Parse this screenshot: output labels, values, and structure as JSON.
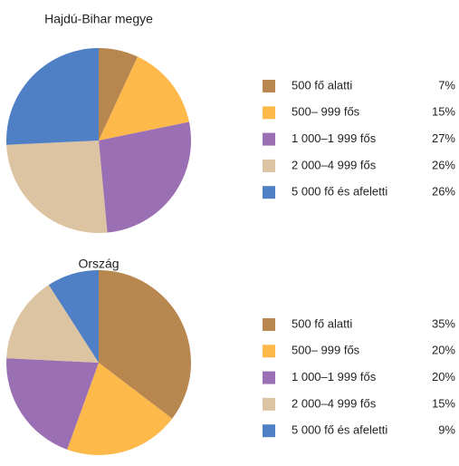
{
  "chart_data": [
    {
      "type": "pie",
      "title": "Hajdú-Bihar megye",
      "categories": [
        "500 fő alatti",
        "500–  999 fős",
        "1 000–1 999 fős",
        "2 000–4 999 fős",
        "5 000 fő és afeletti"
      ],
      "values": [
        7,
        15,
        27,
        26,
        26
      ],
      "value_labels": [
        "7%",
        "15%",
        "27%",
        "26%",
        "26%"
      ],
      "colors": [
        "#b8864f",
        "#fdb94a",
        "#9b6fb4",
        "#dcc4a2",
        "#4f7fc4"
      ]
    },
    {
      "type": "pie",
      "title": "Ország",
      "categories": [
        "500 fő alatti",
        "500–  999 fős",
        "1 000–1 999 fős",
        "2 000–4 999 fős",
        "5 000 fő és afeletti"
      ],
      "values": [
        35,
        20,
        20,
        15,
        9
      ],
      "value_labels": [
        "35%",
        "20%",
        "20%",
        "15%",
        "9%"
      ],
      "colors": [
        "#b8864f",
        "#fdb94a",
        "#9b6fb4",
        "#dcc4a2",
        "#4f7fc4"
      ]
    }
  ]
}
